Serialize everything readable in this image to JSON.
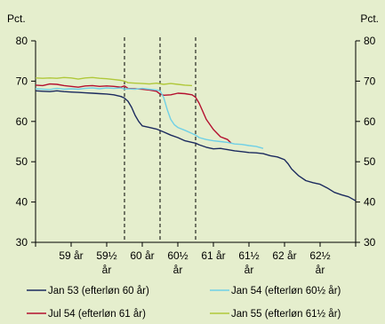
{
  "chart_data": {
    "type": "line",
    "y_unit_left": "Pct.",
    "y_unit_right": "Pct.",
    "ylim": [
      30,
      80
    ],
    "yticks": [
      30,
      40,
      50,
      60,
      70,
      80
    ],
    "xlim": [
      58.5,
      63
    ],
    "x_tick_labels": [
      {
        "lines": [
          "59 år"
        ],
        "x": 59
      },
      {
        "lines": [
          "59½",
          "år"
        ],
        "x": 59.5
      },
      {
        "lines": [
          "60 år"
        ],
        "x": 60
      },
      {
        "lines": [
          "60½",
          "år"
        ],
        "x": 60.5
      },
      {
        "lines": [
          "61 år"
        ],
        "x": 61
      },
      {
        "lines": [
          "61½",
          "år"
        ],
        "x": 61.5
      },
      {
        "lines": [
          "62 år"
        ],
        "x": 62
      },
      {
        "lines": [
          "62½",
          "år"
        ],
        "x": 62.5
      }
    ],
    "dashed_vlines_x": [
      59.75,
      60.25,
      60.75
    ],
    "grid": false,
    "legend_position": "bottom",
    "series": [
      {
        "name": "Jan 53 (efterløn 60 år)",
        "color": "#1b2a5e",
        "points": [
          [
            58.5,
            67.6
          ],
          [
            58.6,
            67.5
          ],
          [
            58.7,
            67.4
          ],
          [
            58.8,
            67.6
          ],
          [
            58.9,
            67.4
          ],
          [
            59.0,
            67.3
          ],
          [
            59.1,
            67.2
          ],
          [
            59.2,
            67.1
          ],
          [
            59.3,
            67.0
          ],
          [
            59.4,
            66.9
          ],
          [
            59.5,
            66.8
          ],
          [
            59.6,
            66.6
          ],
          [
            59.7,
            66.2
          ],
          [
            59.75,
            65.8
          ],
          [
            59.8,
            65.0
          ],
          [
            59.85,
            63.5
          ],
          [
            59.9,
            61.5
          ],
          [
            59.95,
            60.0
          ],
          [
            60.0,
            58.9
          ],
          [
            60.1,
            58.5
          ],
          [
            60.2,
            58.1
          ],
          [
            60.3,
            57.4
          ],
          [
            60.4,
            56.6
          ],
          [
            60.5,
            56.0
          ],
          [
            60.6,
            55.2
          ],
          [
            60.7,
            54.8
          ],
          [
            60.75,
            54.6
          ],
          [
            60.8,
            54.2
          ],
          [
            60.9,
            53.6
          ],
          [
            61.0,
            53.2
          ],
          [
            61.1,
            53.3
          ],
          [
            61.2,
            53.0
          ],
          [
            61.3,
            52.7
          ],
          [
            61.4,
            52.5
          ],
          [
            61.5,
            52.3
          ],
          [
            61.6,
            52.2
          ],
          [
            61.7,
            52.0
          ],
          [
            61.8,
            51.5
          ],
          [
            61.9,
            51.2
          ],
          [
            62.0,
            50.5
          ],
          [
            62.05,
            49.5
          ],
          [
            62.1,
            48.2
          ],
          [
            62.2,
            46.5
          ],
          [
            62.3,
            45.3
          ],
          [
            62.4,
            44.8
          ],
          [
            62.5,
            44.4
          ],
          [
            62.6,
            43.5
          ],
          [
            62.7,
            42.4
          ],
          [
            62.8,
            41.8
          ],
          [
            62.9,
            41.3
          ],
          [
            63.0,
            40.3
          ]
        ]
      },
      {
        "name": "Jan 54 (efterløn 60½ år)",
        "color": "#6fd0e6",
        "points": [
          [
            58.5,
            68.1
          ],
          [
            58.6,
            68.0
          ],
          [
            58.7,
            67.9
          ],
          [
            58.8,
            68.2
          ],
          [
            58.9,
            68.0
          ],
          [
            59.0,
            68.1
          ],
          [
            59.1,
            68.0
          ],
          [
            59.2,
            68.2
          ],
          [
            59.3,
            68.3
          ],
          [
            59.4,
            68.1
          ],
          [
            59.5,
            68.3
          ],
          [
            59.6,
            68.2
          ],
          [
            59.7,
            68.3
          ],
          [
            59.75,
            68.0
          ],
          [
            59.8,
            68.1
          ],
          [
            59.9,
            68.0
          ],
          [
            60.0,
            68.2
          ],
          [
            60.1,
            68.0
          ],
          [
            60.2,
            67.8
          ],
          [
            60.25,
            67.6
          ],
          [
            60.3,
            66.0
          ],
          [
            60.35,
            63.0
          ],
          [
            60.4,
            60.5
          ],
          [
            60.45,
            59.2
          ],
          [
            60.5,
            58.5
          ],
          [
            60.6,
            57.8
          ],
          [
            60.7,
            57.0
          ],
          [
            60.75,
            56.6
          ],
          [
            60.8,
            56.0
          ],
          [
            60.9,
            55.5
          ],
          [
            61.0,
            55.2
          ],
          [
            61.1,
            55.0
          ],
          [
            61.2,
            54.8
          ],
          [
            61.3,
            54.4
          ],
          [
            61.4,
            54.3
          ],
          [
            61.5,
            54.0
          ],
          [
            61.6,
            53.8
          ],
          [
            61.7,
            53.3
          ]
        ]
      },
      {
        "name": "Jul 54 (efterløn 61 år)",
        "color": "#b4102f",
        "points": [
          [
            58.5,
            69.0
          ],
          [
            58.6,
            68.9
          ],
          [
            58.7,
            69.3
          ],
          [
            58.8,
            69.2
          ],
          [
            58.9,
            68.9
          ],
          [
            59.0,
            68.7
          ],
          [
            59.1,
            68.5
          ],
          [
            59.2,
            68.8
          ],
          [
            59.3,
            68.9
          ],
          [
            59.4,
            68.7
          ],
          [
            59.5,
            68.8
          ],
          [
            59.6,
            68.7
          ],
          [
            59.7,
            68.5
          ],
          [
            59.75,
            68.8
          ],
          [
            59.8,
            68.2
          ],
          [
            59.9,
            68.1
          ],
          [
            60.0,
            68.0
          ],
          [
            60.1,
            67.8
          ],
          [
            60.2,
            67.5
          ],
          [
            60.25,
            66.8
          ],
          [
            60.3,
            66.5
          ],
          [
            60.4,
            66.6
          ],
          [
            60.5,
            67.0
          ],
          [
            60.6,
            66.9
          ],
          [
            60.7,
            66.6
          ],
          [
            60.75,
            66.0
          ],
          [
            60.8,
            64.5
          ],
          [
            60.85,
            62.5
          ],
          [
            60.9,
            60.5
          ],
          [
            61.0,
            58.0
          ],
          [
            61.1,
            56.2
          ],
          [
            61.2,
            55.5
          ],
          [
            61.25,
            54.6
          ]
        ]
      },
      {
        "name": "Jan 55 (efterløn 61½ år)",
        "color": "#b0c83a",
        "points": [
          [
            58.5,
            70.8
          ],
          [
            58.6,
            70.7
          ],
          [
            58.7,
            70.8
          ],
          [
            58.8,
            70.7
          ],
          [
            58.9,
            70.9
          ],
          [
            59.0,
            70.8
          ],
          [
            59.1,
            70.5
          ],
          [
            59.2,
            70.8
          ],
          [
            59.3,
            70.9
          ],
          [
            59.4,
            70.7
          ],
          [
            59.5,
            70.6
          ],
          [
            59.6,
            70.4
          ],
          [
            59.7,
            70.2
          ],
          [
            59.75,
            70.0
          ],
          [
            59.8,
            69.6
          ],
          [
            59.9,
            69.5
          ],
          [
            60.0,
            69.4
          ],
          [
            60.1,
            69.3
          ],
          [
            60.2,
            69.5
          ],
          [
            60.3,
            69.2
          ],
          [
            60.4,
            69.4
          ],
          [
            60.5,
            69.2
          ],
          [
            60.6,
            69.0
          ],
          [
            60.7,
            68.9
          ]
        ]
      }
    ]
  }
}
